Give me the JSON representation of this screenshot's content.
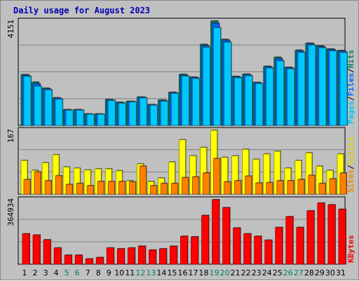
{
  "title": "Daily usage for August 2023",
  "colors": {
    "frame_bg": "#c0c0c0",
    "panel_bg": "#c0c0c0",
    "hits": "#00805c",
    "files": "#0064ff",
    "pages": "#00c8ff",
    "visits": "#ffff00",
    "sites": "#ff8000",
    "kbytes": "#ff0000",
    "weekend_label": "#00805c",
    "weekday_label": "#000000",
    "title": "#0000b0"
  },
  "legends": {
    "top": [
      {
        "text": "Hits",
        "color": "#00805c"
      },
      {
        "text": "/",
        "color": "#000000"
      },
      {
        "text": "Files",
        "color": "#0064ff"
      },
      {
        "text": "/",
        "color": "#000000"
      },
      {
        "text": "Pages",
        "color": "#00c8ff"
      }
    ],
    "middle": [
      {
        "text": "Visits",
        "color": "#d8d800"
      },
      {
        "text": "/",
        "color": "#000000"
      },
      {
        "text": "Sites",
        "color": "#ff8000"
      }
    ],
    "bottom": [
      {
        "text": "KBytes",
        "color": "#ff0000"
      }
    ]
  },
  "chart_data": [
    {
      "type": "bar",
      "panel": "hits-files-pages",
      "ymax_label": "4151",
      "ylim": [
        0,
        4151
      ],
      "categories": [
        "1",
        "2",
        "3",
        "4",
        "5",
        "6",
        "7",
        "8",
        "9",
        "10",
        "11",
        "12",
        "13",
        "14",
        "15",
        "16",
        "17",
        "18",
        "19",
        "20",
        "21",
        "22",
        "23",
        "24",
        "25",
        "26",
        "27",
        "28",
        "29",
        "30",
        "31"
      ],
      "weekend_days": [
        "5",
        "6",
        "12",
        "13",
        "19",
        "20",
        "26",
        "27"
      ],
      "series": [
        {
          "name": "Hits",
          "values": [
            2020,
            1720,
            1480,
            1100,
            630,
            630,
            460,
            460,
            1030,
            920,
            960,
            1130,
            830,
            1010,
            1320,
            2030,
            1920,
            3220,
            4151,
            3420,
            1950,
            2040,
            1710,
            2350,
            2710,
            2310,
            2990,
            3270,
            3170,
            3040,
            2980
          ]
        },
        {
          "name": "Files",
          "values": [
            1990,
            1650,
            1450,
            1080,
            620,
            620,
            450,
            450,
            1010,
            900,
            950,
            1120,
            820,
            990,
            1300,
            2000,
            1900,
            3170,
            4060,
            3380,
            1930,
            2010,
            1690,
            2320,
            2650,
            2290,
            2950,
            3240,
            3130,
            3010,
            2950
          ]
        },
        {
          "name": "Pages",
          "values": [
            1950,
            1560,
            1410,
            1040,
            600,
            600,
            440,
            440,
            990,
            880,
            930,
            1090,
            800,
            960,
            1270,
            1960,
            1860,
            3100,
            3880,
            3300,
            1890,
            1970,
            1660,
            2280,
            2560,
            2250,
            2900,
            3190,
            3080,
            2960,
            2900
          ]
        }
      ]
    },
    {
      "type": "bar",
      "panel": "visits-sites",
      "ymax_label": "167",
      "ylim": [
        0,
        167
      ],
      "categories": [
        "1",
        "2",
        "3",
        "4",
        "5",
        "6",
        "7",
        "8",
        "9",
        "10",
        "11",
        "12",
        "13",
        "14",
        "15",
        "16",
        "17",
        "18",
        "19",
        "20",
        "21",
        "22",
        "23",
        "24",
        "25",
        "26",
        "27",
        "28",
        "29",
        "30",
        "31"
      ],
      "series": [
        {
          "name": "Visits",
          "values": [
            88,
            62,
            82,
            103,
            71,
            68,
            63,
            66,
            66,
            61,
            35,
            79,
            33,
            42,
            84,
            142,
            100,
            122,
            167,
            96,
            100,
            117,
            91,
            105,
            112,
            68,
            88,
            108,
            73,
            62,
            105
          ]
        },
        {
          "name": "Sites",
          "values": [
            38,
            58,
            35,
            48,
            25,
            28,
            22,
            33,
            33,
            33,
            32,
            73,
            22,
            28,
            28,
            43,
            45,
            55,
            93,
            32,
            35,
            47,
            29,
            30,
            35,
            35,
            38,
            49,
            28,
            40,
            55
          ]
        }
      ]
    },
    {
      "type": "bar",
      "panel": "kbytes",
      "ymax_label": "364934",
      "ylim": [
        0,
        364934
      ],
      "categories": [
        "1",
        "2",
        "3",
        "4",
        "5",
        "6",
        "7",
        "8",
        "9",
        "10",
        "11",
        "12",
        "13",
        "14",
        "15",
        "16",
        "17",
        "18",
        "19",
        "20",
        "21",
        "22",
        "23",
        "24",
        "25",
        "26",
        "27",
        "28",
        "29",
        "30",
        "31"
      ],
      "series": [
        {
          "name": "KBytes",
          "values": [
            172000,
            165000,
            138000,
            92000,
            51000,
            51000,
            30000,
            38000,
            92000,
            87000,
            92000,
            102000,
            80000,
            87000,
            102000,
            158000,
            155000,
            276000,
            364934,
            320000,
            205000,
            172000,
            158000,
            136000,
            208000,
            269000,
            208000,
            302000,
            346000,
            336000,
            311000
          ]
        }
      ]
    }
  ]
}
